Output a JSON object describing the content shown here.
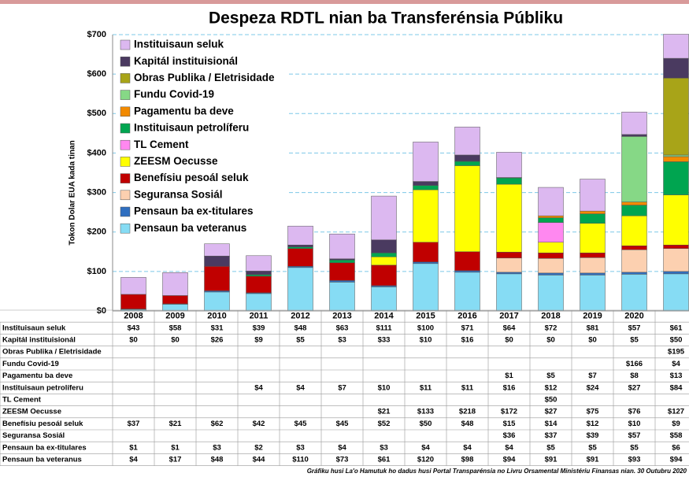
{
  "chart_data": {
    "type": "stacked_bar",
    "title": "Despeza RDTL nian ba Transferénsia Públiku",
    "y_label": "Tokon Dolar EUA kada tinan",
    "footnote": "Gráfiku husi La'o Hamutuk ho dadus husi Portal Transparénsia no Livru Orsamental Ministériu Finansas nian. 30 Outubru 2020",
    "categories": [
      "2008",
      "2009",
      "2010",
      "2011",
      "2012",
      "2013",
      "2014",
      "2015",
      "2016",
      "2017",
      "2018",
      "2019",
      "2020",
      null
    ],
    "ylim": [
      0,
      700
    ],
    "yticks": [
      {
        "value": 0,
        "label": "$0"
      },
      {
        "value": 100,
        "label": "$100"
      },
      {
        "value": 200,
        "label": "$200"
      },
      {
        "value": 300,
        "label": "$300"
      },
      {
        "value": 400,
        "label": "$400"
      },
      {
        "value": 500,
        "label": "$500"
      },
      {
        "value": 600,
        "label": "$600"
      },
      {
        "value": 700,
        "label": "$700"
      }
    ],
    "grid": true,
    "legend": "top-left",
    "series": [
      {
        "name": "Instituisaun seluk",
        "color": "#dcb8f0",
        "values": [
          43,
          58,
          31,
          39,
          48,
          63,
          111,
          100,
          71,
          64,
          72,
          81,
          57,
          61
        ],
        "value_labels": [
          "$43",
          "$58",
          "$31",
          "$39",
          "$48",
          "$63",
          "$111",
          "$100",
          "$71",
          "$64",
          "$72",
          "$81",
          "$57",
          "$61"
        ]
      },
      {
        "name": "Kapitál instituisionál",
        "color": "#4a3a60",
        "values": [
          0,
          0,
          26,
          9,
          5,
          3,
          33,
          10,
          16,
          0,
          0,
          0,
          5,
          50
        ],
        "value_labels": [
          "$0",
          "$0",
          "$26",
          "$9",
          "$5",
          "$3",
          "$33",
          "$10",
          "$16",
          "$0",
          "$0",
          "$0",
          "$5",
          "$50"
        ]
      },
      {
        "name": "Obras Publika / Eletrisidade",
        "color": "#a8a418",
        "values": [
          null,
          null,
          null,
          null,
          null,
          null,
          null,
          null,
          null,
          null,
          null,
          null,
          null,
          195
        ],
        "value_labels": [
          null,
          null,
          null,
          null,
          null,
          null,
          null,
          null,
          null,
          null,
          null,
          null,
          null,
          "$195"
        ]
      },
      {
        "name": "Fundu Covid-19",
        "color": "#86d886",
        "values": [
          null,
          null,
          null,
          null,
          null,
          null,
          null,
          null,
          null,
          null,
          null,
          null,
          166,
          4
        ],
        "value_labels": [
          null,
          null,
          null,
          null,
          null,
          null,
          null,
          null,
          null,
          null,
          null,
          null,
          "$166",
          "$4"
        ]
      },
      {
        "name": "Pagamentu ba deve",
        "color": "#f28a00",
        "values": [
          null,
          null,
          null,
          null,
          null,
          null,
          null,
          null,
          null,
          1,
          5,
          7,
          8,
          13
        ],
        "value_labels": [
          null,
          null,
          null,
          null,
          null,
          null,
          null,
          null,
          null,
          "$1",
          "$5",
          "$7",
          "$8",
          "$13"
        ]
      },
      {
        "name": "Instituisaun petrolíferu",
        "color": "#00a550",
        "values": [
          null,
          null,
          null,
          4,
          4,
          7,
          10,
          11,
          11,
          16,
          12,
          24,
          27,
          84
        ],
        "value_labels": [
          null,
          null,
          null,
          "$4",
          "$4",
          "$7",
          "$10",
          "$11",
          "$11",
          "$16",
          "$12",
          "$24",
          "$27",
          "$84"
        ]
      },
      {
        "name": "TL Cement",
        "color": "#ff88f0",
        "values": [
          null,
          null,
          null,
          null,
          null,
          null,
          null,
          null,
          null,
          null,
          50,
          null,
          null,
          null
        ],
        "value_labels": [
          null,
          null,
          null,
          null,
          null,
          null,
          null,
          null,
          null,
          null,
          "$50",
          null,
          null,
          null
        ]
      },
      {
        "name": "ZEESM Oecusse",
        "color": "#ffff00",
        "values": [
          null,
          null,
          null,
          null,
          null,
          null,
          21,
          133,
          218,
          172,
          27,
          75,
          76,
          127
        ],
        "value_labels": [
          null,
          null,
          null,
          null,
          null,
          null,
          "$21",
          "$133",
          "$218",
          "$172",
          "$27",
          "$75",
          "$76",
          "$127"
        ]
      },
      {
        "name": "Benefísiu pesoál seluk",
        "color": "#c00000",
        "values": [
          37,
          21,
          62,
          42,
          45,
          45,
          52,
          50,
          48,
          15,
          14,
          12,
          10,
          9
        ],
        "value_labels": [
          "$37",
          "$21",
          "$62",
          "$42",
          "$45",
          "$45",
          "$52",
          "$50",
          "$48",
          "$15",
          "$14",
          "$12",
          "$10",
          "$9"
        ]
      },
      {
        "name": "Seguransa Sosiál",
        "color": "#fcd0b0",
        "values": [
          null,
          null,
          null,
          null,
          null,
          null,
          null,
          null,
          null,
          36,
          37,
          39,
          57,
          58
        ],
        "value_labels": [
          null,
          null,
          null,
          null,
          null,
          null,
          null,
          null,
          null,
          "$36",
          "$37",
          "$39",
          "$57",
          "$58"
        ]
      },
      {
        "name": "Pensaun ba ex-titulares",
        "color": "#2f6fc0",
        "values": [
          1,
          1,
          3,
          2,
          3,
          4,
          3,
          4,
          4,
          4,
          5,
          5,
          5,
          6
        ],
        "value_labels": [
          "$1",
          "$1",
          "$3",
          "$2",
          "$3",
          "$4",
          "$3",
          "$4",
          "$4",
          "$4",
          "$5",
          "$5",
          "$5",
          "$6"
        ]
      },
      {
        "name": "Pensaun ba veteranus",
        "color": "#86dcf4",
        "values": [
          4,
          17,
          48,
          44,
          110,
          73,
          61,
          120,
          98,
          94,
          91,
          91,
          93,
          94
        ],
        "value_labels": [
          "$4",
          "$17",
          "$48",
          "$44",
          "$110",
          "$73",
          "$61",
          "$120",
          "$98",
          "$94",
          "$91",
          "$91",
          "$93",
          "$94"
        ]
      }
    ]
  }
}
